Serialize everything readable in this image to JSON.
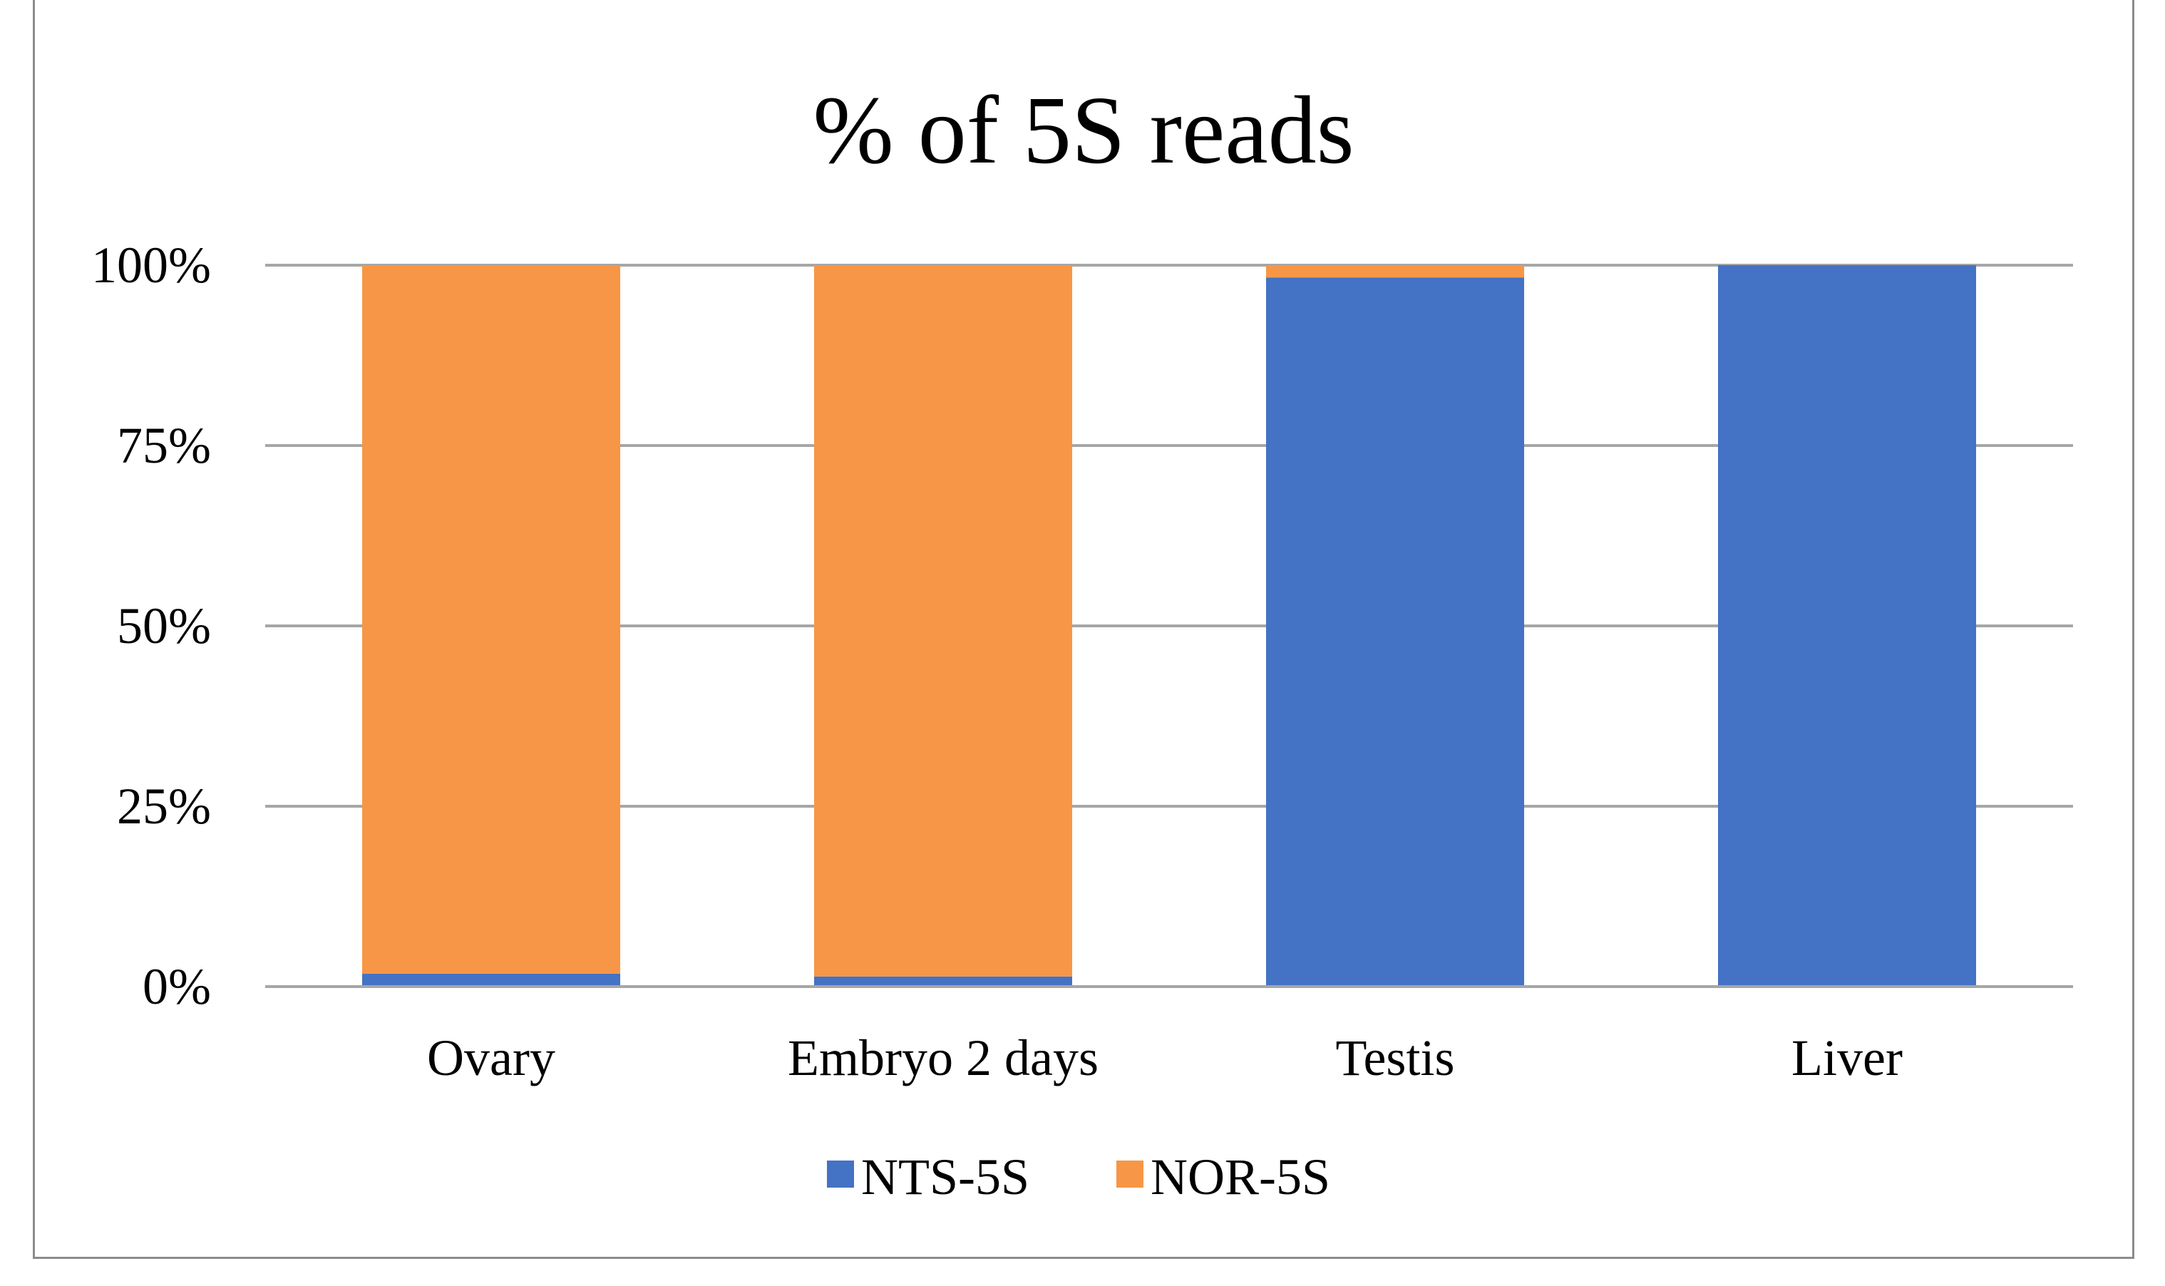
{
  "chart_data": {
    "type": "bar",
    "stacked": true,
    "normalized_percent": true,
    "title": "% of 5S reads",
    "categories": [
      "Ovary",
      "Embryo 2 days",
      "Testis",
      "Liver"
    ],
    "series": [
      {
        "name": "NTS-5S",
        "color": "#4472c4",
        "values": [
          1.8,
          1.4,
          98.3,
          100
        ]
      },
      {
        "name": "NOR-5S",
        "color": "#f79646",
        "values": [
          98.2,
          98.6,
          1.7,
          0
        ]
      }
    ],
    "y_ticks": [
      {
        "value": 0,
        "label": "0%"
      },
      {
        "value": 25,
        "label": "25%"
      },
      {
        "value": 50,
        "label": "50%"
      },
      {
        "value": 75,
        "label": "75%"
      },
      {
        "value": 100,
        "label": "100%"
      }
    ],
    "ylim": [
      0,
      100
    ],
    "grid": true,
    "legend_position": "bottom"
  }
}
